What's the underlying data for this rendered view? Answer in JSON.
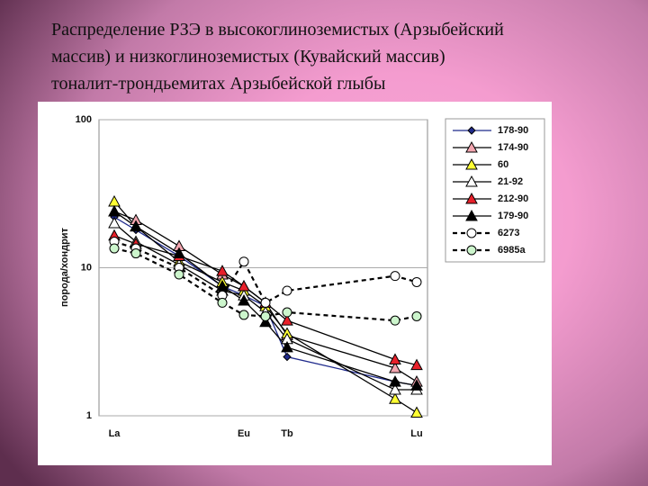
{
  "chart_data": {
    "type": "line",
    "title_lines": [
      "Распределение РЗЭ в высокоглиноземистых (Арзыбейский",
      "массив) и низкоглиноземистых (Кувайский массив)",
      "тоналит-трондьемитах Арзыбейской глыбы"
    ],
    "y_label": "порода/хондрит",
    "categories": [
      "La",
      null,
      null,
      null,
      null,
      null,
      "Eu",
      null,
      "Tb",
      null,
      null,
      null,
      null,
      null,
      "Lu"
    ],
    "log_y": true,
    "ylim": [
      1,
      100
    ],
    "yticks": [
      1,
      10,
      100
    ],
    "grid": true,
    "legend": "top-right",
    "series": [
      {
        "name": "178-90",
        "color": "#1f2a8c",
        "line_color": "#1f2a8c",
        "marker": "diamond",
        "dashed": false,
        "values": [
          22,
          18,
          null,
          12,
          null,
          7.5,
          6.5,
          5.5,
          2.5,
          null,
          null,
          null,
          null,
          1.7,
          1.6
        ]
      },
      {
        "name": "174-90",
        "color": "#f4a6b0",
        "line_color": "#000000",
        "marker": "triangle",
        "dashed": false,
        "values": [
          24,
          21,
          null,
          14,
          null,
          9,
          7.5,
          5.8,
          3.5,
          null,
          null,
          null,
          null,
          2.1,
          1.7
        ]
      },
      {
        "name": "60",
        "color": "#ffff33",
        "line_color": "#000000",
        "marker": "triangle",
        "dashed": false,
        "values": [
          28,
          19,
          null,
          11,
          null,
          8,
          7,
          5.5,
          3.6,
          null,
          null,
          null,
          null,
          1.3,
          1.05
        ]
      },
      {
        "name": "21-92",
        "color": "#ffffff",
        "line_color": "#000000",
        "marker": "triangle",
        "dashed": false,
        "values": [
          20,
          15,
          null,
          10.5,
          null,
          7,
          6.5,
          5,
          3.3,
          null,
          null,
          null,
          null,
          1.5,
          1.5
        ]
      },
      {
        "name": "212-90",
        "color": "#e8202a",
        "line_color": "#000000",
        "marker": "triangle",
        "dashed": false,
        "values": [
          16.5,
          14.5,
          null,
          12,
          null,
          9.5,
          7.5,
          5.8,
          4.4,
          null,
          null,
          null,
          null,
          2.4,
          2.2
        ]
      },
      {
        "name": "179-90",
        "color": "#000000",
        "line_color": "#000000",
        "marker": "triangle",
        "dashed": false,
        "values": [
          24,
          19,
          null,
          12.5,
          null,
          7.5,
          6,
          4.3,
          2.9,
          null,
          null,
          null,
          null,
          1.7,
          1.6
        ]
      },
      {
        "name": "6273",
        "color": "#ffffff",
        "line_color": "#000000",
        "marker": "circle",
        "dashed": true,
        "values": [
          15,
          13.5,
          null,
          10,
          null,
          6.5,
          11,
          5.8,
          7,
          null,
          null,
          null,
          null,
          8.8,
          8
        ]
      },
      {
        "name": "6985a",
        "color": "#ccf5cc",
        "line_color": "#000000",
        "marker": "circle",
        "dashed": true,
        "values": [
          13.5,
          12.5,
          null,
          9,
          null,
          5.8,
          4.8,
          4.7,
          5,
          null,
          null,
          null,
          null,
          4.4,
          4.7
        ]
      }
    ]
  }
}
